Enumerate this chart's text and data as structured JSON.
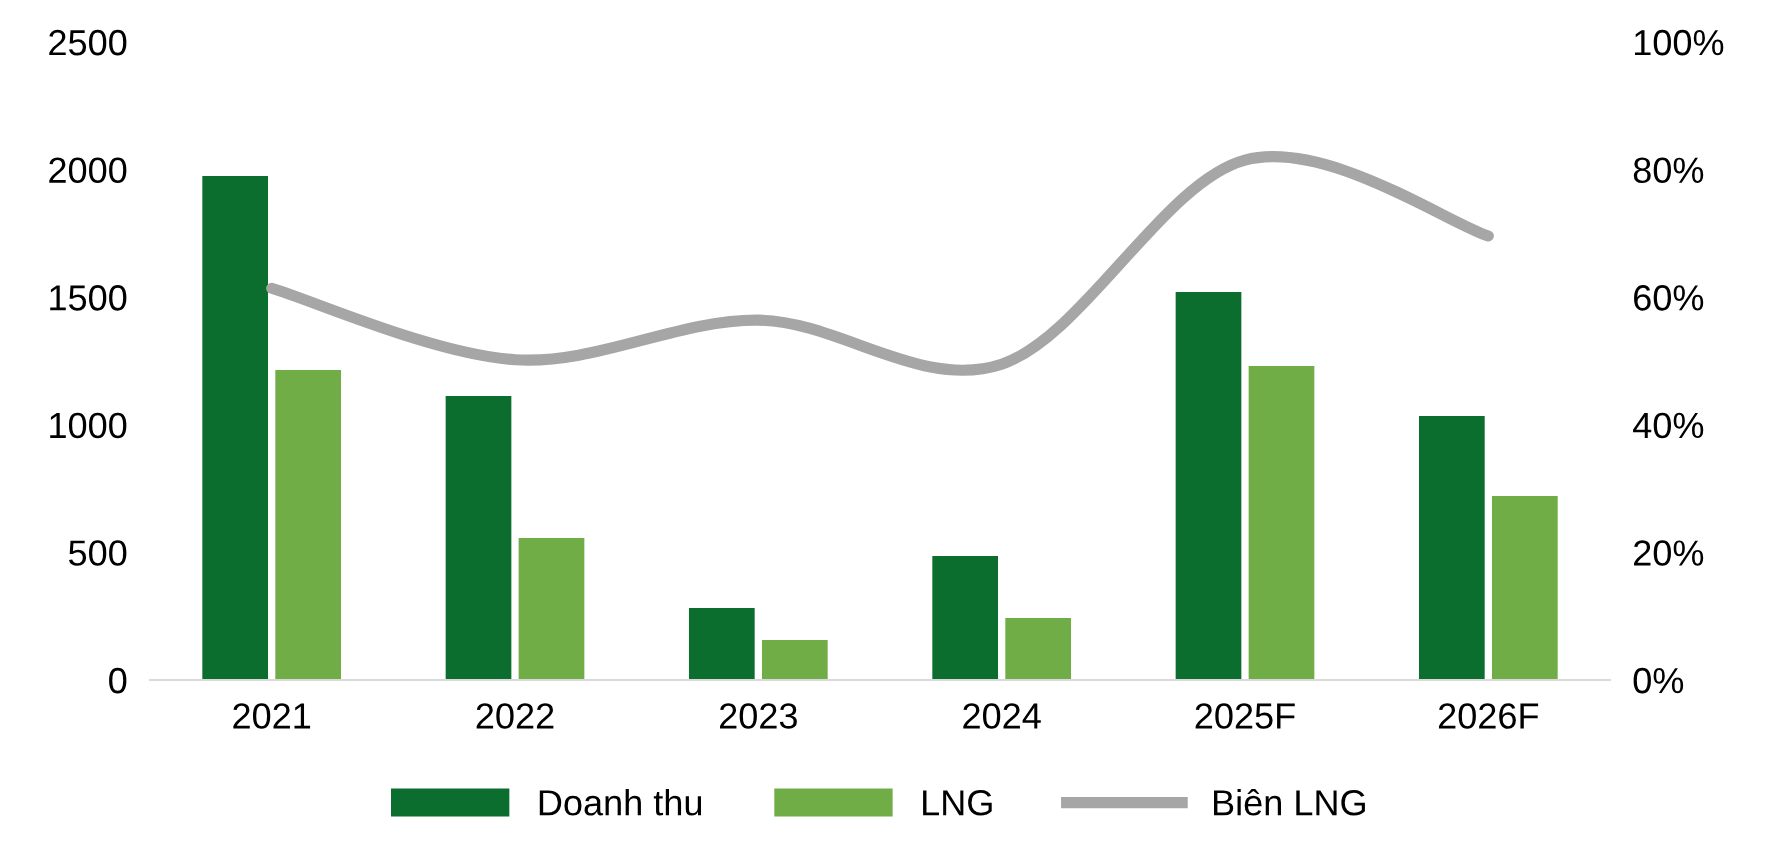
{
  "chart_data": {
    "type": "bar",
    "categories": [
      "2021",
      "2022",
      "2023",
      "2024",
      "2025F",
      "2026F"
    ],
    "series": [
      {
        "name": "Doanh thu",
        "color": "#0b6e2e",
        "values": [
          1975,
          1113,
          282,
          486,
          1520,
          1034
        ]
      },
      {
        "name": "LNG",
        "color": "#70ad47",
        "values": [
          1215,
          556,
          157,
          243,
          1230,
          721
        ]
      },
      {
        "name": "Biên LNG",
        "type": "line",
        "axis": "y2",
        "color": "#a6a6a6",
        "values": [
          61.4,
          50.2,
          56.4,
          49.5,
          81.5,
          69.6
        ]
      }
    ],
    "ylim": [
      0,
      2500
    ],
    "yticks": [
      0,
      500,
      1000,
      1500,
      2000,
      2500
    ],
    "y2lim": [
      0,
      100
    ],
    "y2ticks": [
      {
        "value": 0,
        "label": "0%"
      },
      {
        "value": 20,
        "label": "20%"
      },
      {
        "value": 40,
        "label": "40%"
      },
      {
        "value": 60,
        "label": "60%"
      },
      {
        "value": 80,
        "label": "80%"
      },
      {
        "value": 100,
        "label": "100%"
      }
    ],
    "grid": false,
    "legend": "bottom",
    "marker": "none",
    "line_style": "solid"
  }
}
